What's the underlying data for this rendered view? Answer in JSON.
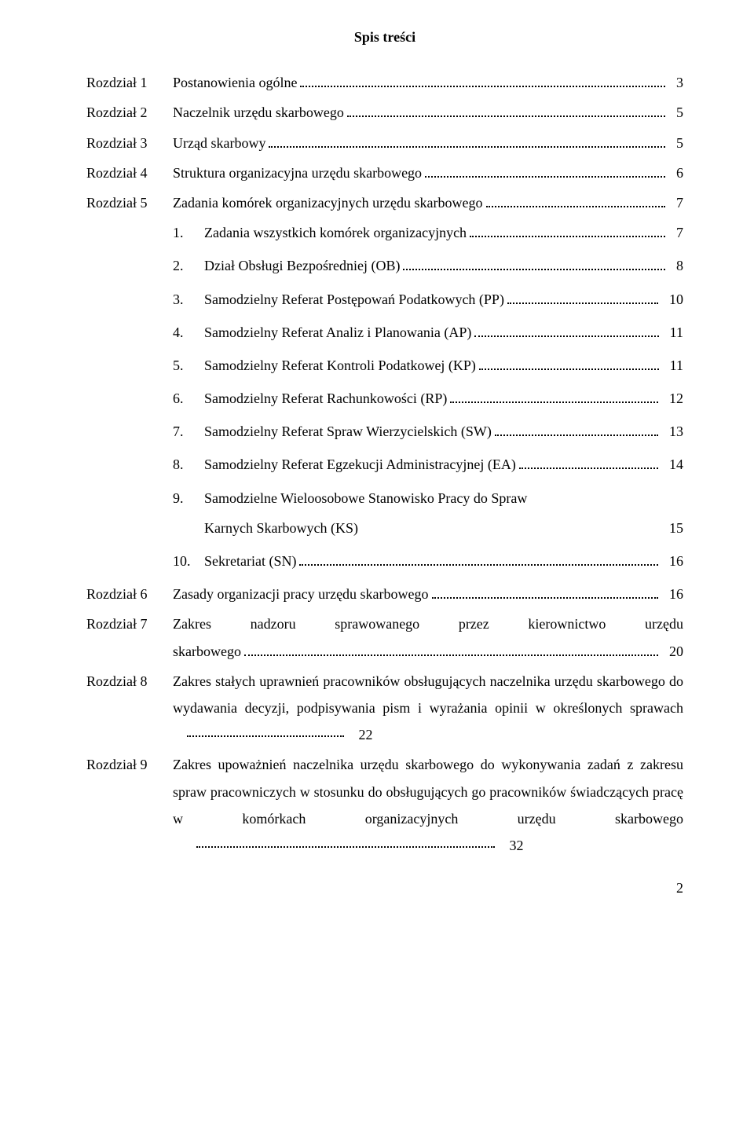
{
  "title": "Spis treści",
  "rows": [
    {
      "label": "Rozdział 1",
      "text": "Postanowienia ogólne",
      "page": "3",
      "dots": true
    },
    {
      "label": "Rozdział 2",
      "text": "Naczelnik urzędu skarbowego",
      "page": "5",
      "dots": true
    },
    {
      "label": "Rozdział 3",
      "text": "Urząd skarbowy",
      "page": "5",
      "dots": true
    },
    {
      "label": "Rozdział 4",
      "text": "Struktura organizacyjna urzędu skarbowego",
      "page": "6",
      "dots": true
    },
    {
      "label": "Rozdział 5",
      "text": "Zadania komórek organizacyjnych urzędu skarbowego",
      "page": "7",
      "dots": true
    }
  ],
  "sub": [
    {
      "num": "1.",
      "text": "Zadania wszystkich komórek organizacyjnych",
      "page": "7"
    },
    {
      "num": "2.",
      "text": "Dział Obsługi Bezpośredniej (OB)",
      "page": "8"
    },
    {
      "num": "3.",
      "text": "Samodzielny Referat Postępowań Podatkowych (PP)",
      "page": "10"
    },
    {
      "num": "4.",
      "text": "Samodzielny Referat Analiz i Planowania (AP)",
      "page": "11"
    },
    {
      "num": "5.",
      "text": "Samodzielny Referat Kontroli Podatkowej  (KP)",
      "page": "11"
    },
    {
      "num": "6.",
      "text": "Samodzielny Referat Rachunkowości (RP)",
      "page": "12"
    },
    {
      "num": "7.",
      "text": "Samodzielny Referat Spraw Wierzycielskich (SW)",
      "page": "13"
    },
    {
      "num": "8.",
      "text": "Samodzielny Referat Egzekucji Administracyjnej (EA)",
      "page": "14"
    }
  ],
  "sub9": {
    "num": "9.",
    "line1": "Samodzielne Wieloosobowe Stanowisko Pracy do Spraw",
    "line2": "Karnych Skarbowych (KS)",
    "page": "15"
  },
  "sub10": {
    "num": "10.",
    "text": "Sekretariat (SN)",
    "page": "16"
  },
  "r6": {
    "label": "Rozdział 6",
    "text": "Zasady organizacji pracy urzędu skarbowego",
    "page": "16"
  },
  "r7": {
    "label": "Rozdział 7",
    "line1_words": [
      "Zakres",
      "nadzoru",
      "sprawowanego",
      "przez",
      "kierownictwo",
      "urzędu"
    ],
    "line2": "skarbowego",
    "page": "20"
  },
  "r8": {
    "label": "Rozdział 8",
    "line1": "Zakres stałych uprawnień pracowników obsługujących naczelnika urzędu skarbowego do wydawania decyzji, podpisywania pism i wyrażania opinii w określonych sprawach",
    "page": "22"
  },
  "r9": {
    "label": "Rozdział 9",
    "line1": "Zakres upoważnień naczelnika urzędu skarbowego do wykonywania zadań z zakresu spraw pracowniczych w stosunku do obsługujących go pracowników świadczących pracę w komórkach organizacyjnych urzędu skarbowego",
    "page": "32"
  },
  "footer_page": "2"
}
